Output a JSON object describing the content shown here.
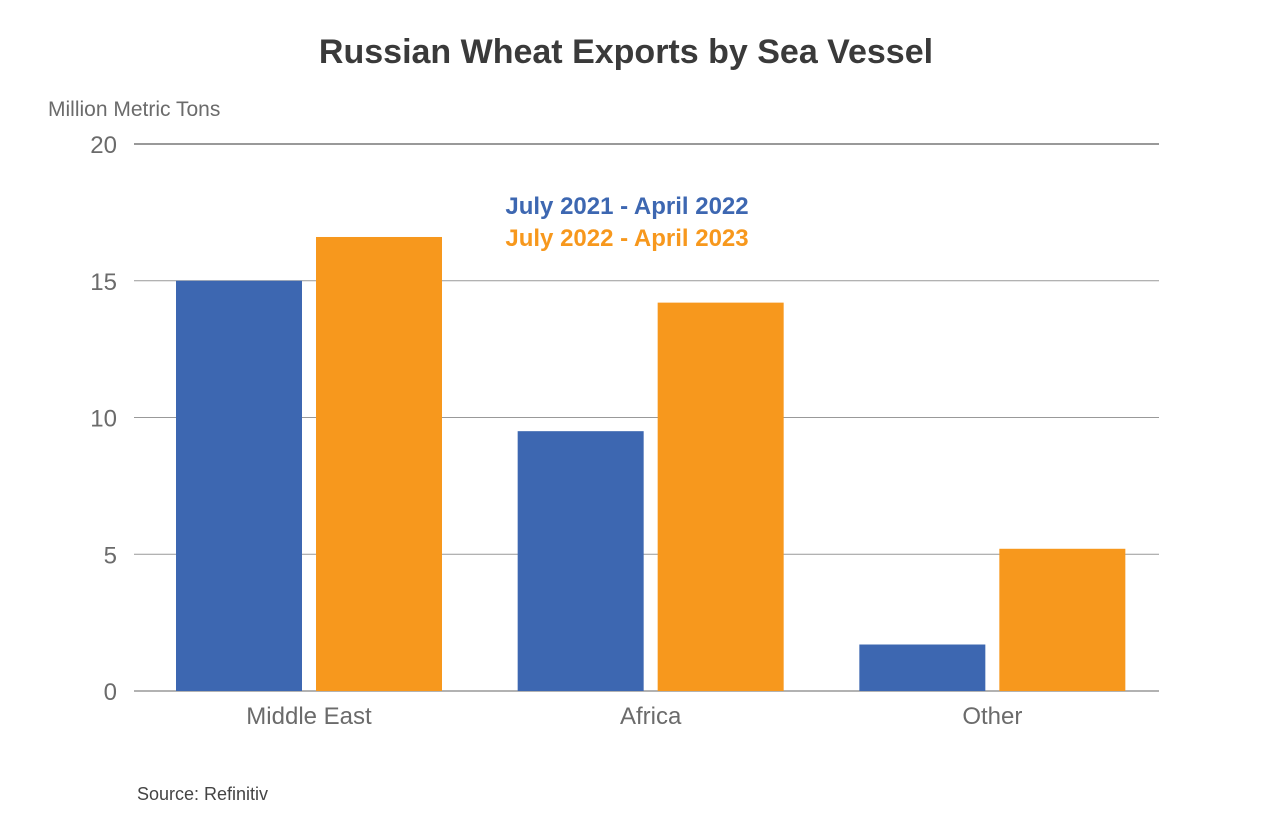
{
  "chart_data": {
    "type": "bar",
    "title": "Russian Wheat Exports by Sea Vessel",
    "ylabel": "Million Metric Tons",
    "xlabel": "",
    "ylim": [
      0,
      20
    ],
    "yticks": [
      "0",
      "5",
      "10",
      "15",
      "20"
    ],
    "grid": true,
    "legend_position": "top-center",
    "categories": [
      "Middle East",
      "Africa",
      "Other"
    ],
    "series": [
      {
        "name": "July 2021 - April 2022",
        "color": "#3d67b1",
        "values": [
          15.0,
          9.5,
          1.7
        ]
      },
      {
        "name": "July 2022 - April 2023",
        "color": "#f7981d",
        "values": [
          16.6,
          14.2,
          5.2
        ]
      }
    ],
    "source": "Source: Refinitiv"
  }
}
